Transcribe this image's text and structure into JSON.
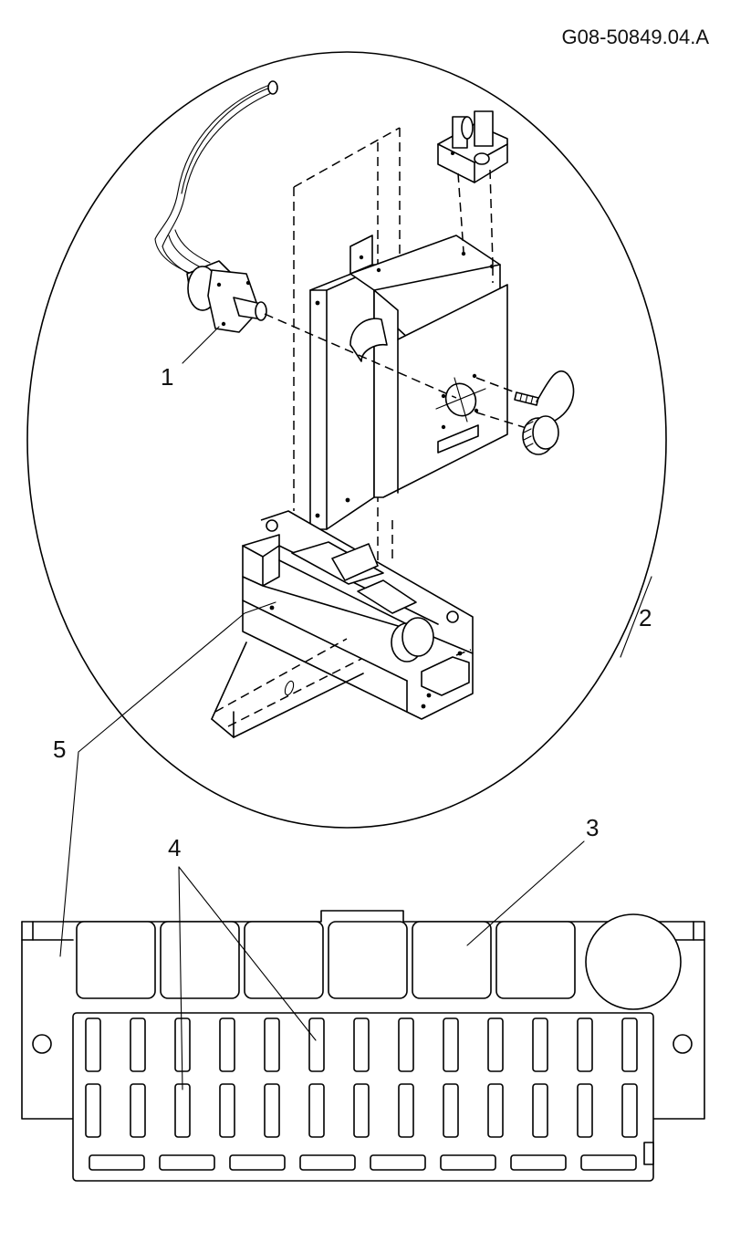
{
  "drawing": {
    "doc_id": "G08-50849.04.A",
    "callouts": [
      {
        "id": "callout-1",
        "label": "1"
      },
      {
        "id": "callout-2",
        "label": "2"
      },
      {
        "id": "callout-3",
        "label": "3"
      },
      {
        "id": "callout-4",
        "label": "4"
      },
      {
        "id": "callout-5",
        "label": "5"
      }
    ]
  }
}
